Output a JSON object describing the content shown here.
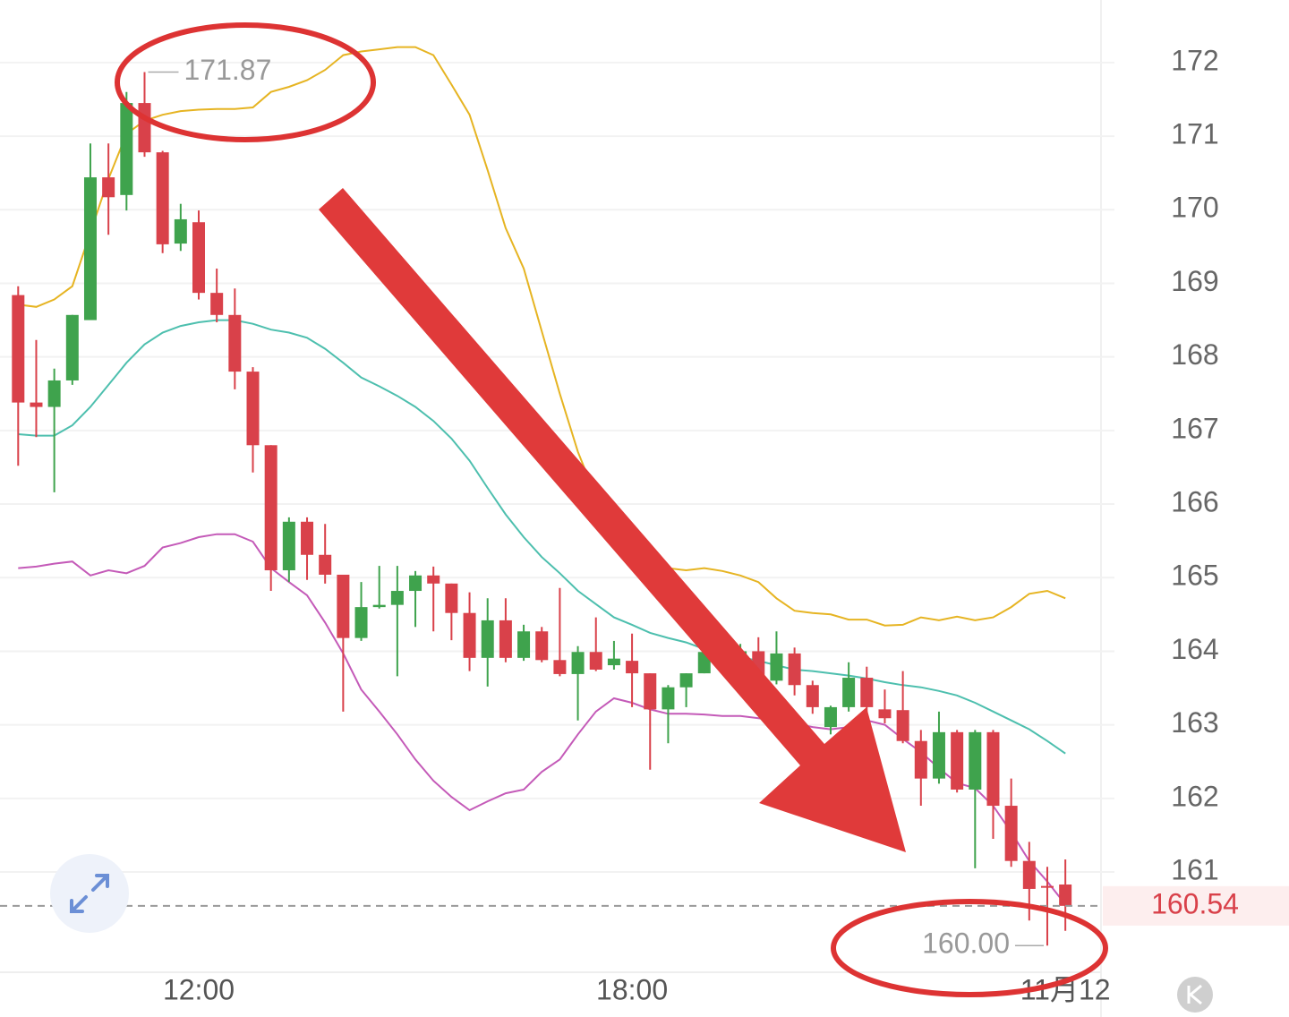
{
  "chart_data": {
    "type": "candlestick",
    "categories": [
      null,
      null,
      null,
      null,
      null,
      null,
      null,
      null,
      null,
      null,
      "12:00",
      null,
      null,
      null,
      null,
      null,
      null,
      null,
      null,
      null,
      null,
      null,
      null,
      null,
      null,
      null,
      null,
      null,
      null,
      null,
      null,
      null,
      null,
      null,
      "18:00",
      null,
      null,
      null,
      null,
      null,
      null,
      null,
      null,
      null,
      null,
      null,
      null,
      null,
      null,
      null,
      null,
      null,
      null,
      null,
      null,
      null,
      null,
      null,
      "11月12"
    ],
    "open": [
      168.84,
      167.38,
      167.32,
      167.68,
      168.5,
      170.44,
      170.2,
      171.45,
      170.78,
      169.54,
      169.83,
      168.87,
      168.57,
      167.8,
      166.8,
      165.1,
      165.76,
      165.31,
      165.04,
      164.18,
      164.6,
      164.63,
      164.82,
      165.03,
      164.92,
      164.52,
      163.91,
      164.42,
      163.91,
      164.27,
      163.88,
      163.69,
      163.99,
      163.81,
      163.87,
      163.7,
      163.21,
      163.51,
      163.7,
      163.99,
      163.85,
      164.0,
      163.6,
      163.97,
      163.54,
      162.97,
      163.24,
      163.64,
      163.21,
      163.2,
      162.78,
      162.27,
      162.9,
      162.12,
      162.9,
      161.9,
      161.15,
      160.81,
      160.83
    ],
    "high": [
      168.96,
      168.23,
      167.84,
      168.57,
      170.9,
      170.9,
      171.6,
      171.87,
      170.8,
      170.08,
      169.99,
      169.2,
      168.93,
      167.86,
      166.8,
      165.82,
      165.82,
      165.73,
      165.04,
      164.94,
      165.16,
      165.16,
      165.09,
      165.15,
      164.92,
      164.8,
      164.72,
      164.72,
      164.36,
      164.33,
      164.86,
      164.07,
      164.46,
      164.14,
      164.24,
      163.7,
      163.54,
      163.7,
      164.09,
      164.05,
      164.1,
      164.19,
      164.27,
      164.05,
      163.6,
      163.26,
      163.85,
      163.79,
      163.48,
      163.73,
      162.93,
      163.18,
      162.93,
      162.93,
      162.93,
      162.27,
      161.41,
      161.07,
      161.17
    ],
    "low": [
      166.52,
      166.91,
      166.16,
      167.62,
      168.5,
      169.66,
      169.99,
      170.72,
      169.41,
      169.44,
      168.78,
      168.47,
      167.56,
      166.43,
      164.82,
      164.94,
      164.97,
      164.92,
      163.18,
      164.14,
      164.58,
      163.66,
      164.33,
      164.27,
      164.15,
      163.73,
      163.52,
      163.85,
      163.87,
      163.85,
      163.66,
      163.06,
      163.73,
      163.75,
      163.24,
      162.39,
      162.75,
      163.24,
      163.7,
      163.8,
      163.8,
      163.5,
      163.55,
      163.4,
      163.15,
      162.87,
      163.18,
      163.12,
      163.02,
      162.75,
      161.9,
      162.2,
      162.08,
      161.05,
      161.45,
      161.07,
      160.34,
      160.0,
      160.2
    ],
    "close": [
      167.38,
      167.32,
      167.68,
      168.57,
      170.44,
      170.17,
      171.45,
      170.78,
      169.53,
      169.87,
      168.87,
      168.57,
      167.8,
      166.8,
      165.1,
      165.76,
      165.31,
      165.04,
      164.18,
      164.6,
      164.63,
      164.82,
      165.03,
      164.92,
      164.52,
      163.91,
      164.42,
      163.91,
      164.27,
      163.88,
      163.69,
      163.99,
      163.75,
      163.9,
      163.7,
      163.21,
      163.51,
      163.7,
      163.99,
      163.85,
      164.0,
      163.6,
      163.97,
      163.54,
      163.24,
      163.24,
      163.64,
      163.24,
      163.09,
      162.78,
      162.27,
      162.9,
      162.12,
      162.9,
      161.9,
      161.15,
      160.77,
      160.79,
      160.54
    ],
    "up_color": "#3fa34d",
    "down_color": "#d9414a",
    "lines": [
      {
        "color": "#e6b422",
        "values": [
          168.71,
          168.68,
          168.78,
          168.96,
          169.69,
          170.42,
          171.03,
          171.21,
          171.29,
          171.34,
          171.36,
          171.37,
          171.37,
          171.39,
          171.6,
          171.67,
          171.76,
          171.9,
          172.1,
          172.15,
          172.18,
          172.21,
          172.21,
          172.1,
          171.7,
          171.29,
          170.54,
          169.75,
          169.2,
          168.35,
          167.5,
          166.71,
          166.1,
          165.67,
          165.37,
          165.21,
          165.13,
          165.1,
          165.13,
          165.09,
          165.03,
          164.94,
          164.72,
          164.55,
          164.52,
          164.5,
          164.43,
          164.43,
          164.35,
          164.36,
          164.46,
          164.42,
          164.47,
          164.42,
          164.46,
          164.6,
          164.78,
          164.82,
          164.72
        ]
      },
      {
        "color": "#4dbfae",
        "values": [
          166.95,
          166.93,
          166.93,
          167.07,
          167.32,
          167.62,
          167.92,
          168.17,
          168.33,
          168.42,
          168.47,
          168.5,
          168.5,
          168.45,
          168.37,
          168.33,
          168.26,
          168.11,
          167.92,
          167.72,
          167.6,
          167.47,
          167.32,
          167.13,
          166.89,
          166.59,
          166.22,
          165.86,
          165.55,
          165.28,
          165.06,
          164.82,
          164.64,
          164.46,
          164.36,
          164.25,
          164.18,
          164.12,
          164.03,
          163.97,
          163.92,
          163.87,
          163.81,
          163.75,
          163.73,
          163.7,
          163.67,
          163.63,
          163.58,
          163.54,
          163.51,
          163.46,
          163.4,
          163.3,
          163.18,
          163.06,
          162.94,
          162.78,
          162.61
        ]
      },
      {
        "color": "#c45ab8",
        "values": [
          165.13,
          165.15,
          165.19,
          165.22,
          165.03,
          165.1,
          165.06,
          165.16,
          165.41,
          165.47,
          165.55,
          165.59,
          165.59,
          165.49,
          165.13,
          164.94,
          164.76,
          164.39,
          163.97,
          163.48,
          163.18,
          162.87,
          162.53,
          162.24,
          162.02,
          161.84,
          161.96,
          162.07,
          162.12,
          162.36,
          162.53,
          162.87,
          163.18,
          163.36,
          163.3,
          163.21,
          163.15,
          163.15,
          163.14,
          163.12,
          163.12,
          163.09,
          163.06,
          163.02,
          162.97,
          162.94,
          162.97,
          163.06,
          163.0,
          162.81,
          162.63,
          162.41,
          162.21,
          162.14,
          161.9,
          161.54,
          161.15,
          160.87,
          160.56
        ]
      }
    ],
    "high_label": "171.87",
    "low_label": "160.00",
    "last_price_label": "160.54",
    "ylim": [
      159.65,
      172.85
    ],
    "yticks": [
      161,
      162,
      163,
      164,
      165,
      166,
      167,
      168,
      169,
      170,
      171,
      172
    ],
    "grid": true
  }
}
